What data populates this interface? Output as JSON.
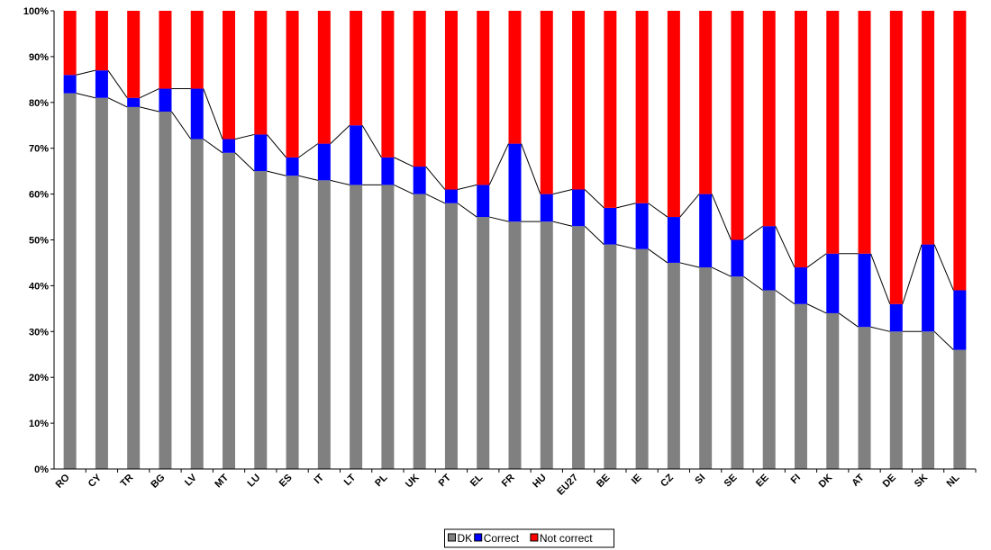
{
  "chart_data": {
    "type": "stacked_bar",
    "categories": [
      "RO",
      "CY",
      "TR",
      "BG",
      "LV",
      "MT",
      "LU",
      "ES",
      "IT",
      "LT",
      "PL",
      "UK",
      "PT",
      "EL",
      "FR",
      "HU",
      "EU27",
      "BE",
      "IE",
      "CZ",
      "SI",
      "SE",
      "EE",
      "FI",
      "DK",
      "AT",
      "DE",
      "SK",
      "NL"
    ],
    "series": [
      {
        "name": "DK",
        "color": "#808080",
        "values": [
          82,
          81,
          79,
          78,
          72,
          69,
          65,
          64,
          63,
          62,
          62,
          60,
          58,
          55,
          54,
          54,
          53,
          49,
          48,
          45,
          44,
          42,
          39,
          36,
          34,
          31,
          30,
          30,
          26
        ]
      },
      {
        "name": "Correct",
        "color": "#0000ff",
        "values": [
          4,
          6,
          2,
          5,
          11,
          3,
          8,
          4,
          8,
          13,
          6,
          6,
          3,
          7,
          17,
          6,
          8,
          8,
          10,
          10,
          16,
          8,
          14,
          8,
          13,
          16,
          6,
          19,
          13
        ]
      },
      {
        "name": "Not correct",
        "color": "#ff0000",
        "values": [
          14,
          13,
          19,
          17,
          17,
          28,
          27,
          32,
          29,
          25,
          32,
          34,
          39,
          38,
          29,
          40,
          39,
          43,
          42,
          45,
          40,
          50,
          47,
          56,
          53,
          53,
          64,
          51,
          61
        ]
      }
    ],
    "ylim": [
      0,
      100
    ],
    "yticks": [
      {
        "value": 0,
        "label": "0%"
      },
      {
        "value": 10,
        "label": "10%"
      },
      {
        "value": 20,
        "label": "20%"
      },
      {
        "value": 30,
        "label": "30%"
      },
      {
        "value": 40,
        "label": "40%"
      },
      {
        "value": 50,
        "label": "50%"
      },
      {
        "value": 60,
        "label": "60%"
      },
      {
        "value": 70,
        "label": "70%"
      },
      {
        "value": 80,
        "label": "80%"
      },
      {
        "value": 90,
        "label": "90%"
      },
      {
        "value": 100,
        "label": "100%"
      }
    ],
    "legend": "bottom"
  }
}
